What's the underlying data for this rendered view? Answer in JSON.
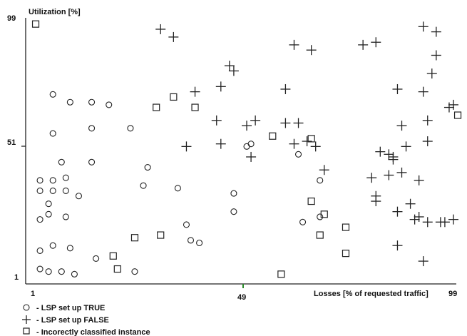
{
  "chart_data": {
    "type": "scatter",
    "ylabel": "Utilization [%]",
    "xlabel": "Losses [% of requested traffic]",
    "xlim": [
      1,
      99
    ],
    "ylim": [
      1,
      99
    ],
    "x_ticks": [
      "1",
      "49",
      "99"
    ],
    "y_ticks": [
      "99",
      "51",
      "1"
    ],
    "legend_position": "bottom-left",
    "series": [
      {
        "name": "- LSP set up TRUE",
        "marker": "circle",
        "points": [
          [
            6,
            13
          ],
          [
            3,
            11
          ],
          [
            5,
            29
          ],
          [
            3,
            34
          ],
          [
            6,
            34
          ],
          [
            9,
            34
          ],
          [
            3,
            38
          ],
          [
            6,
            38
          ],
          [
            9,
            39
          ],
          [
            12,
            32
          ],
          [
            6,
            56
          ],
          [
            6,
            71
          ],
          [
            10,
            68
          ],
          [
            15,
            68
          ],
          [
            19,
            67
          ],
          [
            15,
            58
          ],
          [
            24,
            58
          ],
          [
            8,
            45
          ],
          [
            15,
            45
          ],
          [
            28,
            43
          ],
          [
            5,
            25
          ],
          [
            3,
            23
          ],
          [
            9,
            24
          ],
          [
            16,
            8
          ],
          [
            10,
            12
          ],
          [
            3,
            4
          ],
          [
            5,
            3
          ],
          [
            8,
            3
          ],
          [
            11,
            2
          ],
          [
            25,
            3
          ],
          [
            27,
            36
          ],
          [
            35,
            35
          ],
          [
            37,
            21
          ],
          [
            38,
            15
          ],
          [
            40,
            14
          ],
          [
            48,
            26
          ],
          [
            51,
            51
          ],
          [
            52,
            52
          ],
          [
            48,
            33
          ],
          [
            63,
            48
          ],
          [
            64,
            22
          ],
          [
            68,
            24
          ],
          [
            68,
            38
          ]
        ]
      },
      {
        "name": "- LSP set up FALSE",
        "marker": "cross",
        "points": [
          [
            31,
            96
          ],
          [
            34,
            93
          ],
          [
            39,
            72
          ],
          [
            45,
            74
          ],
          [
            47,
            82
          ],
          [
            48,
            80
          ],
          [
            53,
            61
          ],
          [
            51,
            59
          ],
          [
            44,
            61
          ],
          [
            45,
            52
          ],
          [
            37,
            51
          ],
          [
            62,
            90
          ],
          [
            66,
            88
          ],
          [
            60,
            73
          ],
          [
            60,
            60
          ],
          [
            62,
            52
          ],
          [
            65,
            53
          ],
          [
            67,
            51
          ],
          [
            63,
            60
          ],
          [
            52,
            47
          ],
          [
            78,
            90
          ],
          [
            81,
            91
          ],
          [
            92,
            97
          ],
          [
            95,
            95
          ],
          [
            95,
            86
          ],
          [
            94,
            79
          ],
          [
            86,
            73
          ],
          [
            92,
            72
          ],
          [
            98,
            66
          ],
          [
            99,
            67
          ],
          [
            87,
            59
          ],
          [
            93,
            61
          ],
          [
            88,
            51
          ],
          [
            93,
            53
          ],
          [
            82,
            49
          ],
          [
            84,
            48
          ],
          [
            85,
            46
          ],
          [
            85,
            47
          ],
          [
            84,
            40
          ],
          [
            80,
            39
          ],
          [
            91,
            38
          ],
          [
            87,
            41
          ],
          [
            81,
            32
          ],
          [
            81,
            30
          ],
          [
            86,
            26
          ],
          [
            90,
            23
          ],
          [
            93,
            22
          ],
          [
            96,
            22
          ],
          [
            97,
            22
          ],
          [
            99,
            23
          ],
          [
            91,
            24
          ],
          [
            86,
            13
          ],
          [
            92,
            7
          ],
          [
            89,
            29
          ],
          [
            69,
            42
          ]
        ]
      },
      {
        "name": "- Incorectly classified instance",
        "marker": "square",
        "points": [
          [
            2,
            98
          ],
          [
            34,
            70
          ],
          [
            30,
            66
          ],
          [
            39,
            66
          ],
          [
            57,
            55
          ],
          [
            66,
            54
          ],
          [
            66,
            30
          ],
          [
            69,
            25
          ],
          [
            74,
            20
          ],
          [
            74,
            10
          ],
          [
            68,
            17
          ],
          [
            31,
            17
          ],
          [
            25,
            16
          ],
          [
            20,
            9
          ],
          [
            21,
            4
          ],
          [
            100,
            63
          ],
          [
            59,
            2
          ]
        ]
      }
    ]
  }
}
